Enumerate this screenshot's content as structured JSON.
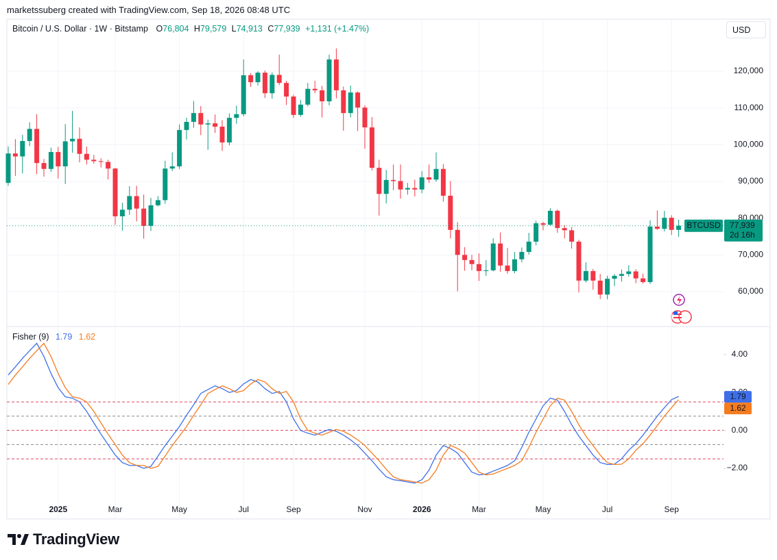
{
  "header": {
    "attribution": "marketssuberg created with TradingView.com, Sep 18, 2026 08:48 UTC"
  },
  "footer": {
    "brand": "TradingView"
  },
  "chart_data": [
    {
      "type": "candlestick",
      "title": "Bitcoin / U.S. Dollar · 1W · Bitstamp",
      "ohlc_legend": [
        {
          "key": "O",
          "value": "76,804"
        },
        {
          "key": "H",
          "value": "79,579"
        },
        {
          "key": "L",
          "value": "74,913"
        },
        {
          "key": "C",
          "value": "77,939"
        }
      ],
      "change": "+1,131 (+1.47%)",
      "currency": "USD",
      "last_price": {
        "symbol": "BTCUSD",
        "label": "77,939",
        "countdown": "2d 16h"
      },
      "up_color": "#089981",
      "down_color": "#f23645",
      "grid": true,
      "categories": [
        null,
        null,
        null,
        null,
        null,
        null,
        null,
        "2025",
        null,
        null,
        null,
        null,
        null,
        null,
        null,
        "Mar",
        null,
        null,
        null,
        null,
        null,
        null,
        null,
        null,
        "May",
        null,
        null,
        null,
        null,
        null,
        null,
        null,
        null,
        "Jul",
        null,
        null,
        null,
        null,
        null,
        null,
        "Sep",
        null,
        null,
        null,
        null,
        null,
        null,
        null,
        null,
        null,
        "Nov",
        null,
        null,
        null,
        null,
        null,
        null,
        null,
        "2026",
        null,
        null,
        null,
        null,
        null,
        null,
        null,
        "Mar",
        null,
        null,
        null,
        null,
        null,
        null,
        null,
        null,
        "May",
        null,
        null,
        null,
        null,
        null,
        null,
        null,
        null,
        "Jul",
        null,
        null,
        null,
        null,
        null,
        null,
        null,
        null,
        "Sep",
        null
      ],
      "open": [
        89600,
        97600,
        96800,
        101000,
        104300,
        95000,
        93400,
        98000,
        94100,
        100900,
        101600,
        97500,
        95900,
        95500,
        95300,
        93500,
        80500,
        82300,
        86000,
        82600,
        77900,
        83500,
        84900,
        93500,
        94100,
        104000,
        106200,
        108600,
        105500,
        105800,
        104900,
        100600,
        107300,
        108300,
        118900,
        117000,
        119600,
        114000,
        119000,
        116800,
        113100,
        108100,
        110900,
        115200,
        114800,
        111800,
        123200,
        114800,
        108600,
        114200,
        110100,
        104700,
        93700,
        86600,
        90400,
        90100,
        87800,
        88200,
        87800,
        91100,
        90500,
        93400,
        86100,
        76800,
        70000,
        68600,
        67500,
        65600,
        65800,
        73100,
        67100,
        65600,
        68800,
        70800,
        73600,
        78600,
        78200,
        82000,
        77300,
        76700,
        73600,
        63000,
        65600,
        63000,
        59200,
        63500,
        64300,
        64800,
        65500,
        63600,
        62600,
        77700,
        77100,
        80100,
        76804
      ],
      "high": [
        99500,
        101500,
        102700,
        106100,
        108300,
        96100,
        99200,
        99400,
        105600,
        109200,
        104700,
        99500,
        97200,
        96300,
        95900,
        93700,
        84200,
        88700,
        88800,
        86400,
        85500,
        86000,
        95600,
        97900,
        105500,
        107300,
        111900,
        110500,
        106800,
        108200,
        106700,
        108500,
        110600,
        123200,
        119500,
        120000,
        120200,
        119700,
        124500,
        117400,
        113600,
        112200,
        116800,
        117400,
        116000,
        124500,
        126200,
        115800,
        116100,
        114500,
        110700,
        107500,
        95900,
        93100,
        94600,
        94600,
        89600,
        90500,
        92800,
        94600,
        97900,
        94700,
        90100,
        78900,
        72100,
        70000,
        70400,
        68600,
        74500,
        76100,
        71900,
        70800,
        72000,
        76000,
        79300,
        79000,
        82700,
        82400,
        78100,
        77600,
        74100,
        68000,
        66200,
        64800,
        64300,
        64800,
        66000,
        67200,
        66100,
        64900,
        79400,
        82100,
        82000,
        80800,
        79579
      ],
      "low": [
        88800,
        91500,
        92200,
        99600,
        92000,
        91300,
        92600,
        90800,
        89300,
        97800,
        95200,
        94600,
        94800,
        93800,
        90500,
        78200,
        76600,
        80900,
        79100,
        74400,
        76500,
        83200,
        83900,
        92800,
        93400,
        101400,
        104600,
        102600,
        98600,
        103200,
        98300,
        99800,
        105700,
        107700,
        115700,
        116100,
        112700,
        112500,
        116200,
        110800,
        107300,
        107600,
        110400,
        114000,
        107400,
        110700,
        112600,
        103800,
        107400,
        103700,
        98900,
        93000,
        80700,
        84000,
        87600,
        85300,
        86400,
        85900,
        86800,
        89600,
        89900,
        84500,
        74500,
        60100,
        65700,
        65800,
        62900,
        64300,
        65500,
        65400,
        64900,
        65000,
        68000,
        70100,
        72600,
        76700,
        78000,
        76000,
        74500,
        71700,
        59800,
        62500,
        60500,
        58000,
        57900,
        61500,
        62700,
        64100,
        62300,
        62200,
        62100,
        76800,
        76400,
        75400,
        74913
      ],
      "close": [
        97600,
        96800,
        101000,
        104300,
        95000,
        93400,
        98000,
        94100,
        100900,
        101600,
        97500,
        95900,
        95500,
        95300,
        93500,
        80500,
        82300,
        86000,
        82600,
        77900,
        83500,
        84900,
        93500,
        94100,
        104000,
        106200,
        108600,
        105500,
        105800,
        104900,
        100600,
        107300,
        108300,
        118900,
        117000,
        119600,
        114000,
        119000,
        116800,
        113100,
        108100,
        110900,
        115200,
        114800,
        111800,
        123200,
        114800,
        108600,
        114200,
        110100,
        104700,
        93700,
        86600,
        90400,
        90100,
        87800,
        88200,
        87800,
        91100,
        90500,
        93400,
        86100,
        76800,
        70000,
        68600,
        67500,
        65600,
        65800,
        73100,
        67100,
        65600,
        68800,
        70800,
        73600,
        78600,
        78200,
        82000,
        77300,
        76700,
        73600,
        63000,
        65600,
        63000,
        59200,
        63500,
        64300,
        64800,
        65500,
        63600,
        62600,
        77700,
        77100,
        80100,
        76808,
        77939
      ],
      "ylim": [
        50680,
        134160
      ],
      "yticks": [
        {
          "value": 60000,
          "label": "60,000"
        },
        {
          "value": 70000,
          "label": "70,000"
        },
        {
          "value": 80000,
          "label": "80,000"
        },
        {
          "value": 90000,
          "label": "90,000"
        },
        {
          "value": 100000,
          "label": "100,000"
        },
        {
          "value": 110000,
          "label": "110,000"
        },
        {
          "value": 120000,
          "label": "120,000"
        }
      ]
    },
    {
      "type": "line",
      "title": "Fisher (9)",
      "series": [
        {
          "color": "#3f6fe8",
          "legend_value": "1.79",
          "values": [
            2.92,
            3.35,
            3.8,
            4.2,
            4.59,
            3.9,
            3.0,
            2.25,
            1.77,
            1.7,
            1.5,
            1.0,
            0.4,
            -0.2,
            -0.75,
            -1.3,
            -1.7,
            -1.85,
            -1.85,
            -2.0,
            -1.9,
            -1.35,
            -0.8,
            -0.3,
            0.2,
            0.8,
            1.35,
            1.95,
            2.15,
            2.35,
            2.2,
            2.0,
            2.1,
            2.45,
            2.68,
            2.55,
            2.2,
            1.95,
            2.05,
            1.5,
            0.6,
            0.0,
            -0.15,
            -0.25,
            -0.1,
            0.05,
            -0.05,
            -0.25,
            -0.5,
            -0.8,
            -1.2,
            -1.6,
            -2.05,
            -2.45,
            -2.6,
            -2.65,
            -2.72,
            -2.78,
            -2.6,
            -2.1,
            -1.3,
            -0.8,
            -0.95,
            -1.2,
            -1.7,
            -2.2,
            -2.35,
            -2.3,
            -2.15,
            -2.0,
            -1.85,
            -1.6,
            -0.9,
            -0.1,
            0.6,
            1.3,
            1.7,
            1.6,
            1.0,
            0.3,
            -0.3,
            -0.8,
            -1.3,
            -1.7,
            -1.8,
            -1.78,
            -1.5,
            -1.05,
            -0.7,
            -0.25,
            0.25,
            0.75,
            1.2,
            1.62,
            1.79
          ]
        },
        {
          "color": "#f57c1f",
          "legend_value": "1.62",
          "values": [
            2.42,
            2.92,
            3.35,
            3.8,
            4.2,
            4.59,
            3.9,
            3.0,
            2.25,
            1.77,
            1.7,
            1.5,
            1.0,
            0.4,
            -0.2,
            -0.75,
            -1.3,
            -1.7,
            -1.85,
            -1.85,
            -2.0,
            -1.9,
            -1.35,
            -0.8,
            -0.3,
            0.2,
            0.8,
            1.35,
            1.95,
            2.15,
            2.35,
            2.2,
            2.0,
            2.1,
            2.45,
            2.68,
            2.55,
            2.2,
            1.95,
            2.05,
            1.5,
            0.6,
            0.0,
            -0.15,
            -0.25,
            -0.1,
            0.05,
            -0.05,
            -0.25,
            -0.5,
            -0.8,
            -1.2,
            -1.6,
            -2.05,
            -2.45,
            -2.6,
            -2.65,
            -2.72,
            -2.78,
            -2.6,
            -2.1,
            -1.3,
            -0.8,
            -0.95,
            -1.2,
            -1.7,
            -2.2,
            -2.35,
            -2.3,
            -2.15,
            -2.0,
            -1.85,
            -1.6,
            -0.9,
            -0.1,
            0.6,
            1.3,
            1.7,
            1.6,
            1.0,
            0.3,
            -0.3,
            -0.8,
            -1.3,
            -1.7,
            -1.8,
            -1.78,
            -1.5,
            -1.05,
            -0.7,
            -0.25,
            0.25,
            0.75,
            1.2,
            1.62
          ]
        }
      ],
      "levels": [
        {
          "value": 1.5,
          "color": "#e0435b"
        },
        {
          "value": 0.75,
          "color": "#888888"
        },
        {
          "value": 0,
          "color": "#e0435b"
        },
        {
          "value": -0.75,
          "color": "#888888"
        },
        {
          "value": -1.5,
          "color": "#e0435b"
        }
      ],
      "ylim": [
        -4.67,
        5.44
      ],
      "yticks": [
        {
          "value": 4,
          "label": "4.00"
        },
        {
          "value": 2,
          "label": "2.00"
        },
        {
          "value": 0,
          "label": "0.00"
        },
        {
          "value": -2,
          "label": "−2.00"
        }
      ]
    }
  ]
}
